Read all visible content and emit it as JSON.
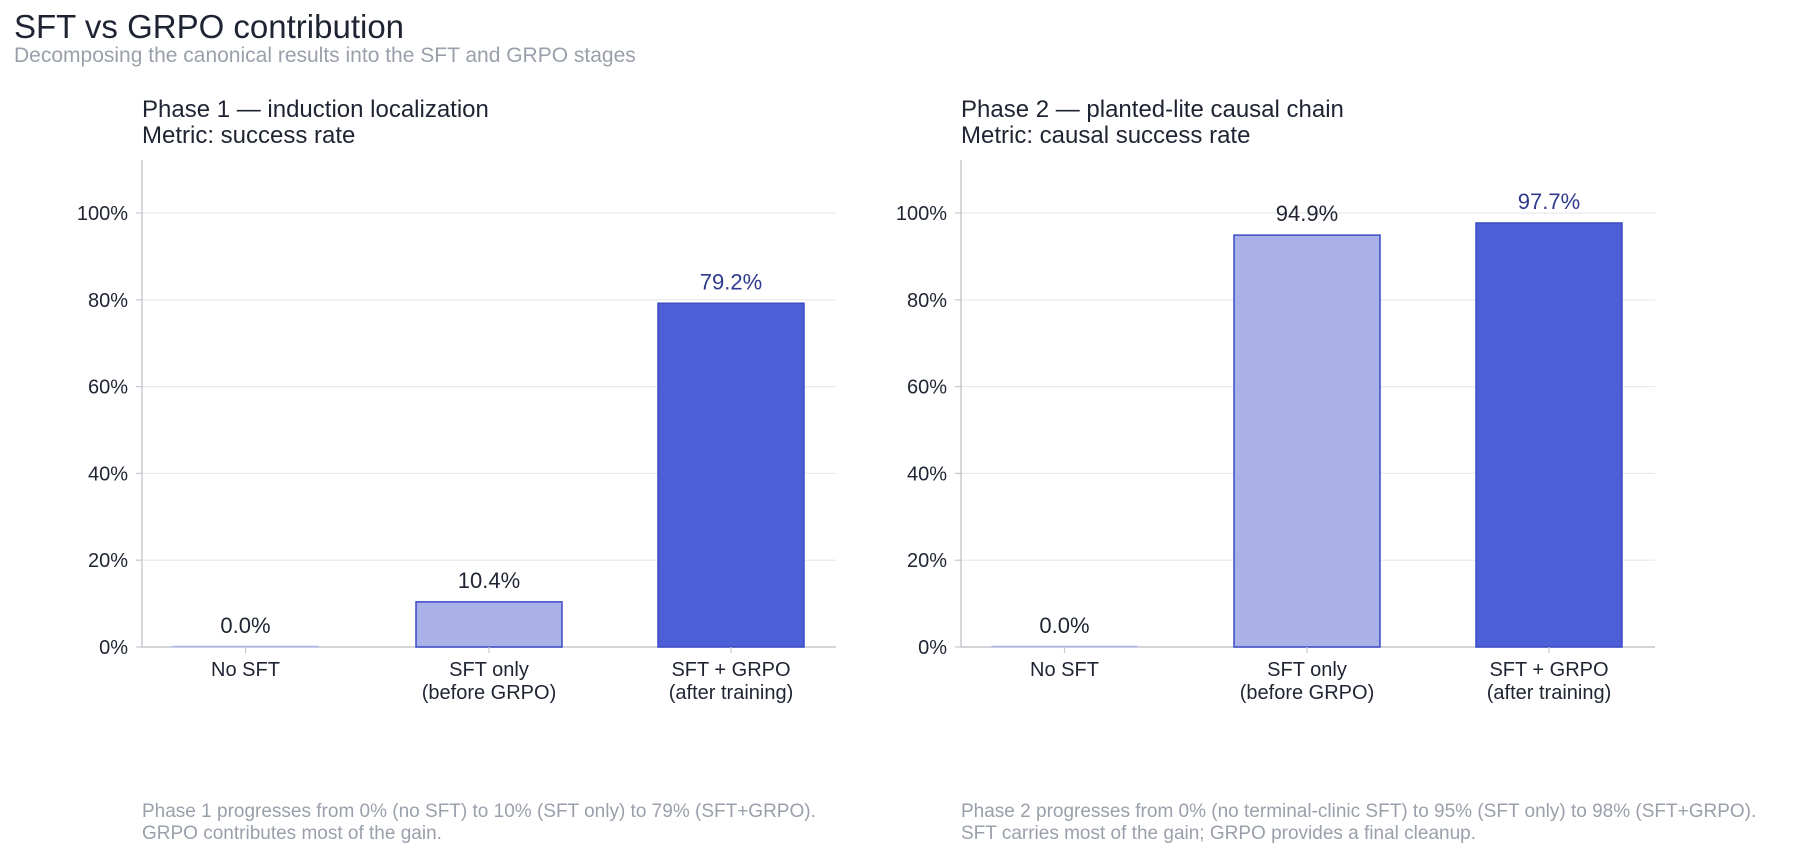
{
  "title": "SFT vs GRPO contribution",
  "subtitle": "Decomposing the canonical results into the SFT and GRPO stages",
  "colors": {
    "sft_only_fill": "#a9b1e8",
    "sft_grpo_fill": "#4c5fd7",
    "bar_stroke": "#3b4bc4",
    "highlight_label": "#2e3a8c",
    "grid": "#e8e9ec",
    "axis": "#c4c7ce",
    "caption": "#9aa0ab"
  },
  "chart_data": [
    {
      "type": "bar",
      "title_lines": [
        "Phase 1 — induction localization",
        "Metric: success rate"
      ],
      "categories": [
        [
          "No SFT"
        ],
        [
          "SFT only",
          "(before GRPO)"
        ],
        [
          "SFT + GRPO",
          "(after training)"
        ]
      ],
      "values": [
        0.0,
        10.4,
        79.2
      ],
      "value_labels": [
        "0.0%",
        "10.4%",
        "79.2%"
      ],
      "yticks": [
        "0%",
        "20%",
        "40%",
        "60%",
        "80%",
        "100%"
      ],
      "ylim": [
        0,
        112
      ],
      "grid": true,
      "caption_lines": [
        "Phase 1 progresses from 0% (no SFT) to 10% (SFT only) to 79% (SFT+GRPO).",
        "GRPO contributes most of the gain."
      ]
    },
    {
      "type": "bar",
      "title_lines": [
        "Phase 2 — planted-lite causal chain",
        "Metric: causal success rate"
      ],
      "categories": [
        [
          "No SFT"
        ],
        [
          "SFT only",
          "(before GRPO)"
        ],
        [
          "SFT + GRPO",
          "(after training)"
        ]
      ],
      "values": [
        0.0,
        94.9,
        97.7
      ],
      "value_labels": [
        "0.0%",
        "94.9%",
        "97.7%"
      ],
      "yticks": [
        "0%",
        "20%",
        "40%",
        "60%",
        "80%",
        "100%"
      ],
      "ylim": [
        0,
        112
      ],
      "grid": true,
      "caption_lines": [
        "Phase 2 progresses from 0% (no terminal-clinic SFT) to 95% (SFT only) to 98% (SFT+GRPO).",
        "SFT carries most of the gain; GRPO provides a final cleanup."
      ]
    }
  ]
}
